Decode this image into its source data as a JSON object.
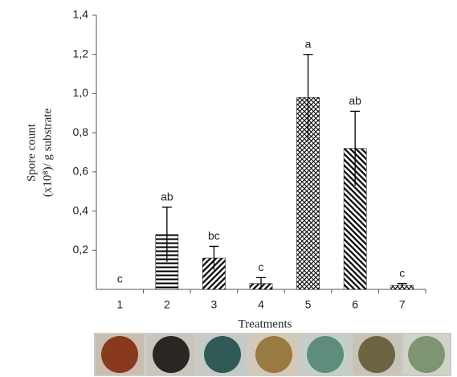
{
  "chart_data": {
    "type": "bar",
    "ylabel": [
      "Spore count",
      "(x10⁸)/ g substrate"
    ],
    "xlabel": "Treatments",
    "categories": [
      "1",
      "2",
      "3",
      "4",
      "5",
      "6",
      "7"
    ],
    "values": [
      0,
      0.28,
      0.16,
      0.03,
      0.98,
      0.72,
      0.02
    ],
    "errors": [
      null,
      0.14,
      0.06,
      0.03,
      0.22,
      0.19,
      0.01
    ],
    "annotations": [
      "c",
      "ab",
      "bc",
      "c",
      "a",
      "ab",
      "c"
    ],
    "patterns": [
      "horizontal",
      "horizontal",
      "diagonal-up",
      "diagonal-up",
      "crosshatch",
      "diagonal-down",
      "crosshatch"
    ],
    "color": "#000000",
    "ylim": [
      0,
      1.4
    ],
    "yticks": [
      {
        "value": 0.2,
        "label": "0,2"
      },
      {
        "value": 0.4,
        "label": "0,4"
      },
      {
        "value": 0.6,
        "label": "0,6"
      },
      {
        "value": 0.8,
        "label": "0,8"
      },
      {
        "value": 1.0,
        "label": "1,0"
      },
      {
        "value": 1.2,
        "label": "1,2"
      },
      {
        "value": 1.4,
        "label": "1,4"
      }
    ],
    "grid": false
  }
}
